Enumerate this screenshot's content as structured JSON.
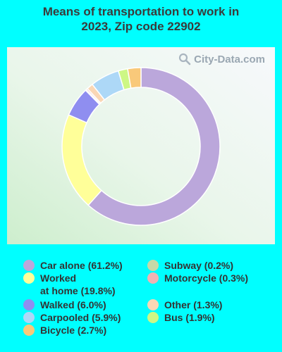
{
  "title_line1": "Means of transportation to work in",
  "title_line2": "2023, Zip code 22902",
  "watermark": "City-Data.com",
  "chart_data": {
    "type": "pie",
    "title": "Means of transportation to work in 2023, Zip code 22902",
    "slices": [
      {
        "label": "Car alone",
        "display": "Car alone (61.2%)",
        "value": 61.2,
        "color": "#bba7db"
      },
      {
        "label": "Worked at home",
        "display_line1": "Worked",
        "display_line2": "at home (19.8%)",
        "value": 19.8,
        "color": "#ffff99"
      },
      {
        "label": "Walked",
        "display": "Walked (6.0%)",
        "value": 6.0,
        "color": "#8f8ef0"
      },
      {
        "label": "Carpooled",
        "display": "Carpooled (5.9%)",
        "value": 5.9,
        "color": "#add8f7"
      },
      {
        "label": "Bicycle",
        "display": "Bicycle (2.7%)",
        "value": 2.7,
        "color": "#f9c97a"
      },
      {
        "label": "Subway",
        "display": "Subway (0.2%)",
        "value": 0.2,
        "color": "#c7d9a7"
      },
      {
        "label": "Motorcycle",
        "display": "Motorcycle (0.3%)",
        "value": 0.3,
        "color": "#f2b3b3"
      },
      {
        "label": "Other",
        "display": "Other (1.3%)",
        "value": 1.3,
        "color": "#fad7b5"
      },
      {
        "label": "Bus",
        "display": "Bus (1.9%)",
        "value": 1.9,
        "color": "#cdf785"
      }
    ]
  }
}
